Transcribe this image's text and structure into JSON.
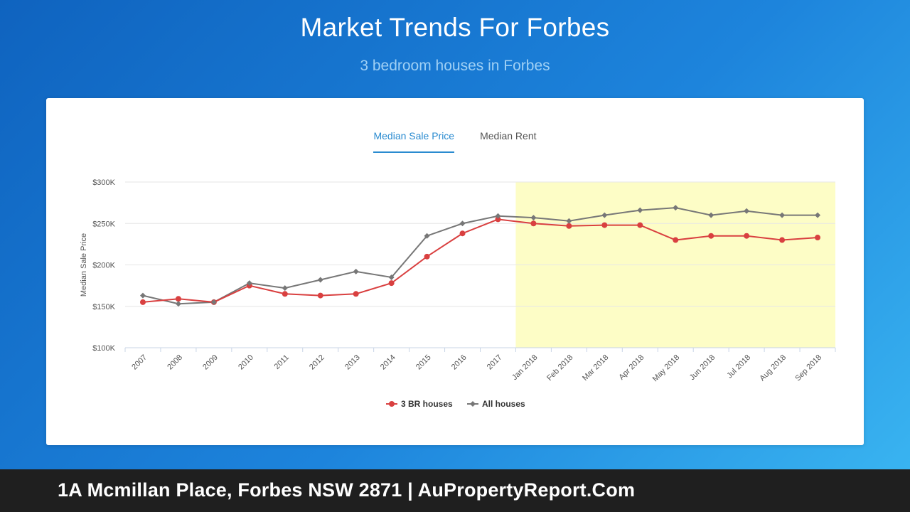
{
  "header": {
    "title": "Market Trends For Forbes",
    "subtitle": "3 bedroom houses in Forbes"
  },
  "tabs": [
    {
      "label": "Median Sale Price",
      "active": true
    },
    {
      "label": "Median Rent",
      "active": false
    }
  ],
  "footer": {
    "text": "1A Mcmillan Place, Forbes NSW 2871 | AuPropertyReport.Com"
  },
  "colors": {
    "series_3br": "#d94040",
    "series_all": "#777777",
    "highlight": "#fdfdc6",
    "tab_active": "#2a8bd0"
  },
  "chart_data": {
    "type": "line",
    "ylabel": "Median Sale Price",
    "xlabel": "",
    "ylim": [
      100000,
      300000
    ],
    "yticks": [
      {
        "value": 100000,
        "label": "$100K"
      },
      {
        "value": 150000,
        "label": "$150K"
      },
      {
        "value": 200000,
        "label": "$200K"
      },
      {
        "value": 250000,
        "label": "$250K"
      },
      {
        "value": 300000,
        "label": "$300K"
      }
    ],
    "categories": [
      "2007",
      "2008",
      "2009",
      "2010",
      "2011",
      "2012",
      "2013",
      "2014",
      "2015",
      "2016",
      "2017",
      "Jan 2018",
      "Feb 2018",
      "Mar 2018",
      "Apr 2018",
      "May 2018",
      "Jun 2018",
      "Jul 2018",
      "Aug 2018",
      "Sep 2018"
    ],
    "highlight_range": [
      "Jan 2018",
      "Sep 2018"
    ],
    "grid": true,
    "legend_position": "bottom-center",
    "series": [
      {
        "name": "3 BR houses",
        "color": "#d94040",
        "marker": "circle",
        "values": [
          155000,
          159000,
          155000,
          175000,
          165000,
          163000,
          165000,
          178000,
          210000,
          238000,
          255000,
          250000,
          247000,
          248000,
          248000,
          230000,
          235000,
          235000,
          230000,
          233000
        ]
      },
      {
        "name": "All houses",
        "color": "#777777",
        "marker": "diamond",
        "values": [
          163000,
          153000,
          155000,
          178000,
          172000,
          182000,
          192000,
          185000,
          235000,
          250000,
          259000,
          257000,
          253000,
          260000,
          266000,
          269000,
          260000,
          265000,
          260000,
          260000
        ]
      }
    ]
  }
}
